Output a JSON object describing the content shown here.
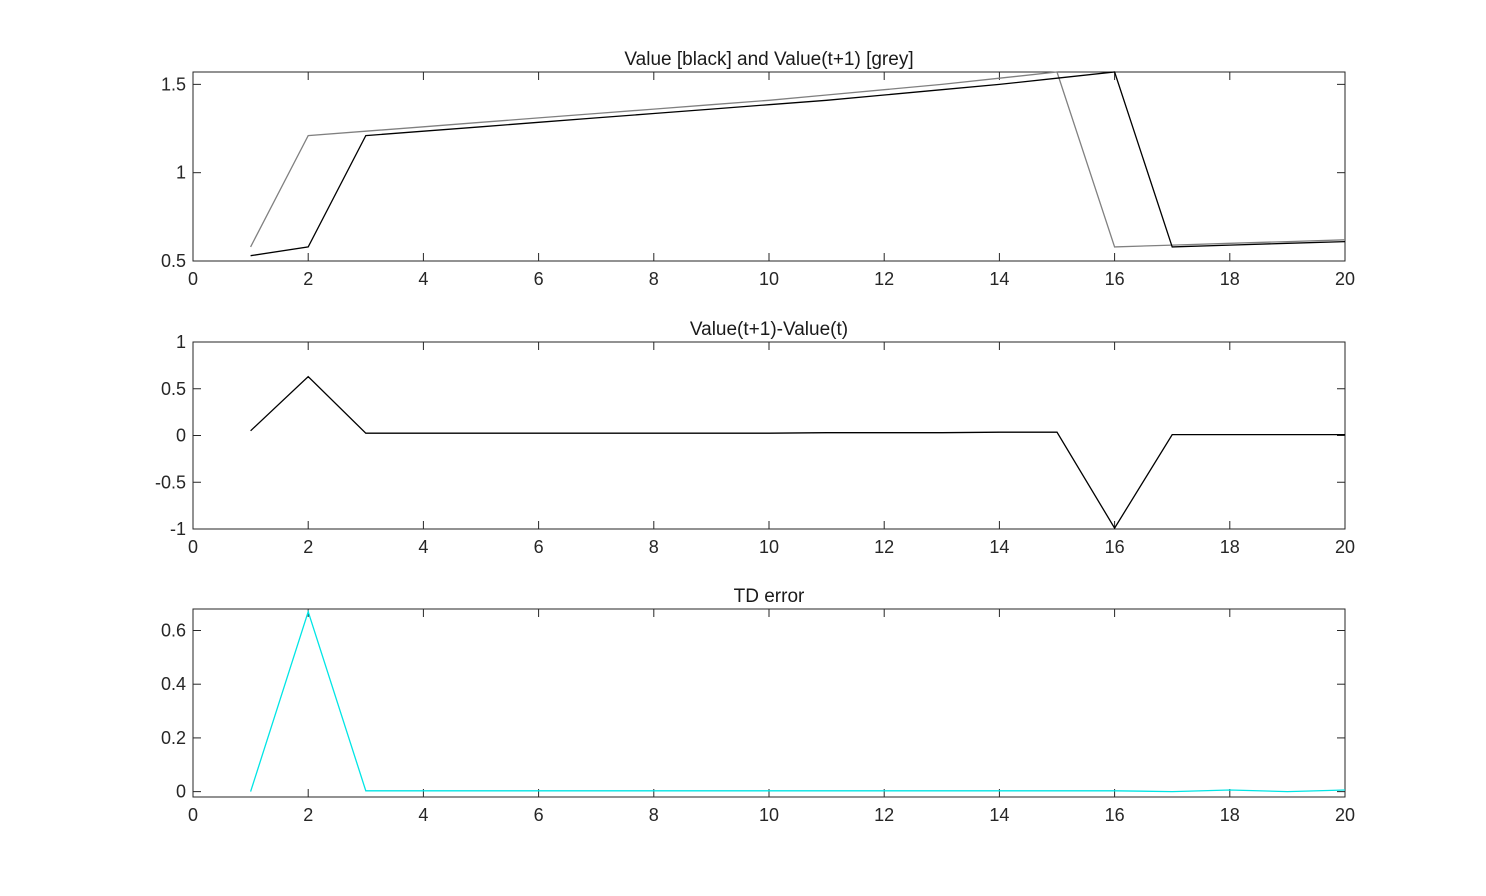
{
  "chart_data": [
    {
      "type": "line",
      "title": "Value [black] and Value(t+1) [grey]",
      "xlabel": "",
      "ylabel": "",
      "xlim": [
        0,
        20
      ],
      "ylim": [
        0.5,
        1.57
      ],
      "xticks": [
        0,
        2,
        4,
        6,
        8,
        10,
        12,
        14,
        16,
        18,
        20
      ],
      "yticks": [
        0.5,
        1,
        1.5
      ],
      "grid": false,
      "series": [
        {
          "color": "#000000",
          "x": [
            1,
            2,
            3,
            4,
            5,
            6,
            7,
            8,
            9,
            10,
            11,
            12,
            13,
            14,
            15,
            16,
            17,
            18,
            19,
            20
          ],
          "y": [
            0.53,
            0.58,
            1.21,
            1.235,
            1.26,
            1.285,
            1.31,
            1.335,
            1.36,
            1.385,
            1.41,
            1.44,
            1.47,
            1.5,
            1.535,
            1.57,
            0.58,
            0.59,
            0.6,
            0.61
          ]
        },
        {
          "color": "#808080",
          "x": [
            1,
            2,
            3,
            4,
            5,
            6,
            7,
            8,
            9,
            10,
            11,
            12,
            13,
            14,
            15,
            16,
            17,
            18,
            19,
            20
          ],
          "y": [
            0.58,
            1.21,
            1.235,
            1.26,
            1.285,
            1.31,
            1.335,
            1.36,
            1.385,
            1.41,
            1.44,
            1.47,
            1.5,
            1.535,
            1.57,
            0.58,
            0.59,
            0.6,
            0.61,
            0.62
          ]
        }
      ]
    },
    {
      "type": "line",
      "title": "Value(t+1)-Value(t)",
      "xlabel": "",
      "ylabel": "",
      "xlim": [
        0,
        20
      ],
      "ylim": [
        -1,
        1
      ],
      "xticks": [
        0,
        2,
        4,
        6,
        8,
        10,
        12,
        14,
        16,
        18,
        20
      ],
      "yticks": [
        -1,
        -0.5,
        0,
        0.5,
        1
      ],
      "grid": false,
      "series": [
        {
          "color": "#000000",
          "x": [
            1,
            2,
            3,
            4,
            5,
            6,
            7,
            8,
            9,
            10,
            11,
            12,
            13,
            14,
            15,
            16,
            17,
            18,
            19,
            20
          ],
          "y": [
            0.05,
            0.63,
            0.025,
            0.025,
            0.025,
            0.025,
            0.025,
            0.025,
            0.025,
            0.025,
            0.03,
            0.03,
            0.03,
            0.035,
            0.035,
            -0.99,
            0.01,
            0.01,
            0.01,
            0.01
          ]
        }
      ]
    },
    {
      "type": "line",
      "title": "TD error",
      "xlabel": "",
      "ylabel": "",
      "xlim": [
        0,
        20
      ],
      "ylim": [
        -0.02,
        0.68
      ],
      "xticks": [
        0,
        2,
        4,
        6,
        8,
        10,
        12,
        14,
        16,
        18,
        20
      ],
      "yticks": [
        0,
        0.2,
        0.4,
        0.6
      ],
      "grid": false,
      "series": [
        {
          "color": "#00e5e5",
          "x": [
            1,
            2,
            3,
            4,
            5,
            6,
            7,
            8,
            9,
            10,
            11,
            12,
            13,
            14,
            15,
            16,
            17,
            18,
            19,
            20
          ],
          "y": [
            0,
            0.67,
            0.003,
            0.003,
            0.003,
            0.003,
            0.003,
            0.003,
            0.003,
            0.003,
            0.003,
            0.003,
            0.003,
            0.003,
            0.003,
            0.003,
            0.0,
            0.006,
            0.0,
            0.006
          ]
        }
      ]
    }
  ]
}
